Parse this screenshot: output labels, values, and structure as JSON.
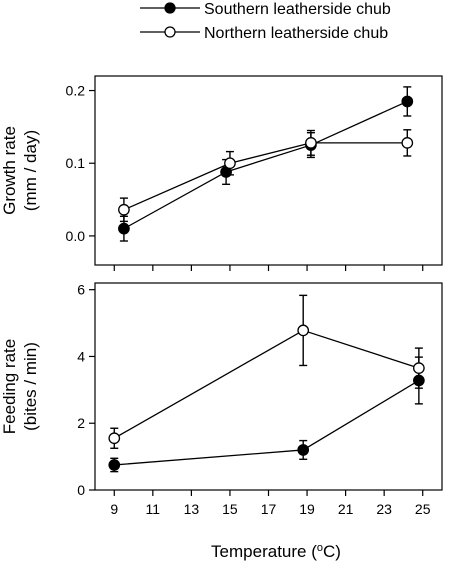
{
  "legend": {
    "southern": "Southern leatherside chub",
    "northern": "Northern leatherside chub",
    "placement": "top"
  },
  "xlabel_main": "Temperature (",
  "xlabel_sup": "o",
  "xlabel_unit": "C)",
  "xticks": [
    "9",
    "11",
    "13",
    "15",
    "17",
    "19",
    "21",
    "23",
    "25"
  ],
  "chart_data": [
    {
      "type": "line",
      "ylabel_line1": "Growth rate",
      "ylabel_line2": "(mm / day)",
      "xlim": [
        8,
        26
      ],
      "ylim": [
        -0.04,
        0.22
      ],
      "yticks": [
        "0.0",
        "0.1",
        "0.2"
      ],
      "series": [
        {
          "name": "Southern leatherside chub",
          "marker": "filled",
          "x": [
            9.5,
            14.8,
            19.2,
            24.2
          ],
          "y": [
            0.01,
            0.088,
            0.125,
            0.185
          ],
          "err": [
            0.017,
            0.017,
            0.017,
            0.02
          ]
        },
        {
          "name": "Northern leatherside chub",
          "marker": "open",
          "x": [
            9.5,
            15.0,
            19.2,
            24.2
          ],
          "y": [
            0.036,
            0.1,
            0.128,
            0.128
          ],
          "err": [
            0.016,
            0.016,
            0.017,
            0.018
          ]
        }
      ]
    },
    {
      "type": "line",
      "ylabel_line1": "Feeding rate",
      "ylabel_line2": "(bites / min)",
      "xlim": [
        8,
        26
      ],
      "ylim": [
        0,
        6.2
      ],
      "yticks": [
        "0",
        "2",
        "4",
        "6"
      ],
      "series": [
        {
          "name": "Southern leatherside chub",
          "marker": "filled",
          "x": [
            9.0,
            18.8,
            24.8
          ],
          "y": [
            0.75,
            1.2,
            3.28
          ],
          "err": [
            0.2,
            0.28,
            0.7
          ]
        },
        {
          "name": "Northern leatherside chub",
          "marker": "open",
          "x": [
            9.0,
            18.8,
            24.8
          ],
          "y": [
            1.55,
            4.78,
            3.65
          ],
          "err": [
            0.3,
            1.05,
            0.6
          ]
        }
      ]
    }
  ]
}
